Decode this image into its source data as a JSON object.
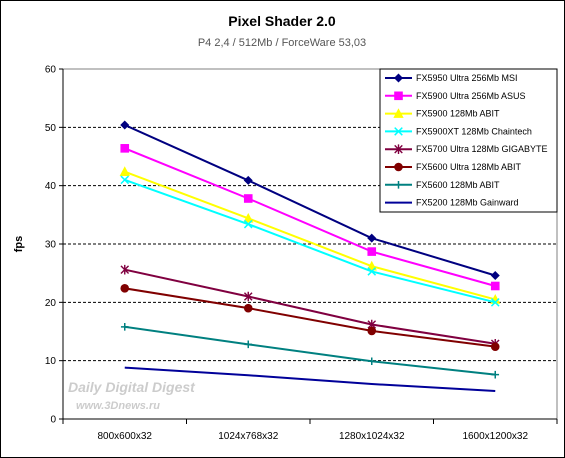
{
  "chart_data": {
    "type": "line",
    "title": "Pixel Shader 2.0",
    "subtitle": "P4 2,4 / 512Mb / ForceWare 53,03",
    "ylabel": "fps",
    "xlabel": "",
    "categories": [
      "800x600x32",
      "1024x768x32",
      "1280x1024x32",
      "1600x1200x32"
    ],
    "ylim": [
      0,
      60
    ],
    "yticks": [
      0,
      10,
      20,
      30,
      40,
      50,
      60
    ],
    "grid": "horizontal dashed at 10, 20, 30, 40, 50",
    "legend_position": "top-right",
    "watermark": [
      "Daily Digital Digest",
      "www.3Dnews.ru"
    ],
    "series": [
      {
        "name": "FX5950 Ultra 256Mb MSI",
        "values": [
          50.4,
          40.9,
          31.0,
          24.6
        ],
        "color": "#000080",
        "marker": "diamond"
      },
      {
        "name": "FX5900 Ultra 256Mb ASUS",
        "values": [
          46.4,
          37.8,
          28.7,
          22.8
        ],
        "color": "#ff00ff",
        "marker": "square"
      },
      {
        "name": "FX5900 128Mb ABIT",
        "values": [
          42.4,
          34.4,
          26.2,
          20.5
        ],
        "color": "#ffff00",
        "marker": "triangle"
      },
      {
        "name": "FX5900XT 128Mb Chaintech",
        "values": [
          41.0,
          33.4,
          25.3,
          20.0
        ],
        "color": "#00ffff",
        "marker": "x"
      },
      {
        "name": "FX5700 Ultra 128Mb GIGABYTE",
        "values": [
          25.6,
          21.0,
          16.2,
          12.9
        ],
        "color": "#800040",
        "marker": "star"
      },
      {
        "name": "FX5600 Ultra 128Mb ABIT",
        "values": [
          22.4,
          19.0,
          15.1,
          12.4
        ],
        "color": "#800000",
        "marker": "circle"
      },
      {
        "name": "FX5600 128Mb ABIT",
        "values": [
          15.8,
          12.8,
          9.9,
          7.6
        ],
        "color": "#008080",
        "marker": "plus"
      },
      {
        "name": "FX5200 128Mb Gainward",
        "values": [
          8.8,
          7.5,
          6.0,
          4.8
        ],
        "color": "#000099",
        "marker": "none"
      }
    ]
  }
}
